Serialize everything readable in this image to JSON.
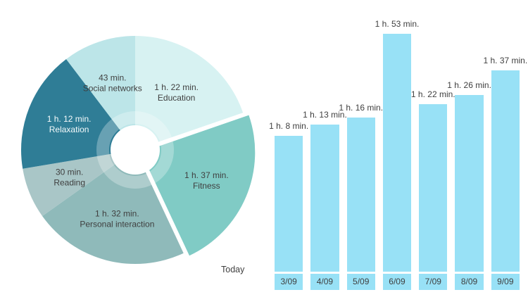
{
  "page": {
    "background": "#ffffff",
    "text_color": "#3f3f3f"
  },
  "chart_data": [
    {
      "type": "pie",
      "style": "donut",
      "unit": "minutes",
      "footer_label": "Today",
      "legend_position": "none",
      "slices": [
        {
          "label": "Education",
          "value_text": "1 h. 22 min.",
          "minutes": 82,
          "color": "#d7f2f2",
          "text_color": "#3f3f3f",
          "exploded": false
        },
        {
          "label": "Fitness",
          "value_text": "1 h. 37 min.",
          "minutes": 97,
          "color": "#80cbc5",
          "text_color": "#3f3f3f",
          "exploded": true
        },
        {
          "label": "Personal interaction",
          "value_text": "1 h. 32 min.",
          "minutes": 92,
          "color": "#8fbaba",
          "text_color": "#3f3f3f",
          "exploded": false
        },
        {
          "label": "Reading",
          "value_text": "30 min.",
          "minutes": 30,
          "color": "#a9c6c7",
          "text_color": "#3f3f3f",
          "exploded": false
        },
        {
          "label": "Relaxation",
          "value_text": "1 h. 12 min.",
          "minutes": 72,
          "color": "#2f7d96",
          "text_color": "#f4fafb",
          "exploded": false
        },
        {
          "label": "Social networks",
          "value_text": "43 min.",
          "minutes": 43,
          "color": "#bce5e8",
          "text_color": "#3f3f3f",
          "exploded": false
        }
      ]
    },
    {
      "type": "bar",
      "categories": [
        "3/09",
        "4/09",
        "5/09",
        "6/09",
        "7/09",
        "8/09",
        "9/09"
      ],
      "values": [
        68,
        73,
        76,
        113,
        82,
        86,
        97
      ],
      "value_labels": [
        "1 h. 8 min.",
        "1 h. 13 min.",
        "1 h. 16 min.",
        "1 h. 53 min.",
        "1 h. 22 min.",
        "1 h. 26 min.",
        "1 h. 37 min."
      ],
      "unit": "minutes",
      "bar_color": "#98e1f6",
      "label_color": "#3f3f3f",
      "ylim": [
        0,
        120
      ],
      "grid": false,
      "legend_position": "none"
    }
  ]
}
